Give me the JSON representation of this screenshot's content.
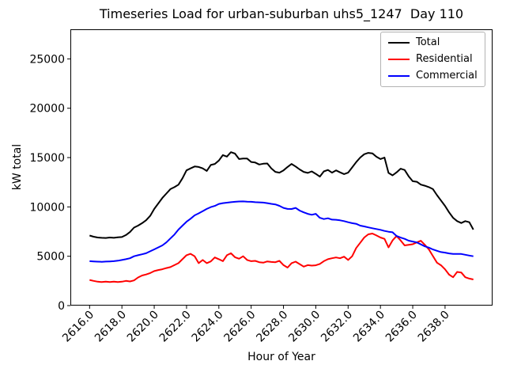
{
  "chart_data": {
    "type": "line",
    "title": "Timeseries Load for urban-suburban uhs5_1247  Day 110",
    "xlabel": "Hour of Year",
    "ylabel": "kW total",
    "grid": false,
    "legend_position": "upper right",
    "xlim": [
      2614.81,
      2640.94
    ],
    "ylim": [
      0,
      28000
    ],
    "x_start": 2616.0,
    "x_step": 0.25,
    "x_ticks": [
      {
        "value": 2616,
        "label": "2616.0"
      },
      {
        "value": 2618,
        "label": "2618.0"
      },
      {
        "value": 2620,
        "label": "2620.0"
      },
      {
        "value": 2622,
        "label": "2622.0"
      },
      {
        "value": 2624,
        "label": "2624.0"
      },
      {
        "value": 2626,
        "label": "2626.0"
      },
      {
        "value": 2628,
        "label": "2628.0"
      },
      {
        "value": 2630,
        "label": "2630.0"
      },
      {
        "value": 2632,
        "label": "2632.0"
      },
      {
        "value": 2634,
        "label": "2634.0"
      },
      {
        "value": 2636,
        "label": "2636.0"
      },
      {
        "value": 2638,
        "label": "2638.0"
      }
    ],
    "y_ticks": [
      {
        "value": 0,
        "label": "0"
      },
      {
        "value": 5000,
        "label": "5000"
      },
      {
        "value": 10000,
        "label": "10000"
      },
      {
        "value": 15000,
        "label": "15000"
      },
      {
        "value": 20000,
        "label": "20000"
      },
      {
        "value": 25000,
        "label": "25000"
      }
    ],
    "series": [
      {
        "name": "Total",
        "color": "#000000",
        "values": [
          7100,
          6980,
          6900,
          6870,
          6850,
          6900,
          6870,
          6920,
          6950,
          7150,
          7450,
          7900,
          8100,
          8350,
          8650,
          9100,
          9800,
          10350,
          10900,
          11350,
          11800,
          12000,
          12250,
          12900,
          13700,
          13900,
          14100,
          14050,
          13900,
          13650,
          14250,
          14350,
          14700,
          15250,
          15100,
          15550,
          15400,
          14850,
          14900,
          14900,
          14550,
          14500,
          14300,
          14380,
          14400,
          13900,
          13550,
          13470,
          13700,
          14050,
          14350,
          14100,
          13800,
          13550,
          13450,
          13600,
          13350,
          13070,
          13600,
          13740,
          13470,
          13700,
          13500,
          13330,
          13470,
          14000,
          14540,
          15000,
          15340,
          15480,
          15430,
          15080,
          14850,
          15000,
          13450,
          13200,
          13500,
          13870,
          13740,
          13100,
          12600,
          12550,
          12260,
          12150,
          12000,
          11800,
          11190,
          10650,
          10100,
          9450,
          8900,
          8560,
          8370,
          8560,
          8450,
          7700
        ]
      },
      {
        "name": "Residential",
        "color": "#ff0000",
        "values": [
          2600,
          2500,
          2420,
          2380,
          2420,
          2380,
          2420,
          2380,
          2420,
          2500,
          2450,
          2550,
          2850,
          3050,
          3150,
          3300,
          3500,
          3600,
          3680,
          3800,
          3900,
          4100,
          4300,
          4700,
          5100,
          5250,
          5000,
          4300,
          4620,
          4300,
          4480,
          4880,
          4700,
          4500,
          5100,
          5300,
          4900,
          4750,
          5000,
          4620,
          4500,
          4530,
          4400,
          4350,
          4480,
          4420,
          4400,
          4530,
          4100,
          3850,
          4300,
          4450,
          4200,
          3950,
          4100,
          4050,
          4080,
          4220,
          4500,
          4700,
          4800,
          4880,
          4800,
          4960,
          4620,
          5000,
          5830,
          6360,
          6900,
          7220,
          7300,
          7110,
          6900,
          6760,
          5900,
          6600,
          7050,
          6600,
          6100,
          6150,
          6220,
          6400,
          6570,
          6150,
          5690,
          5015,
          4345,
          4080,
          3675,
          3140,
          2870,
          3410,
          3355,
          2870,
          2735,
          2650
        ]
      },
      {
        "name": "Commercial",
        "color": "#0000ff",
        "values": [
          4500,
          4480,
          4450,
          4440,
          4460,
          4480,
          4500,
          4550,
          4620,
          4700,
          4800,
          5000,
          5100,
          5200,
          5300,
          5500,
          5700,
          5900,
          6100,
          6400,
          6800,
          7200,
          7700,
          8100,
          8500,
          8800,
          9150,
          9350,
          9570,
          9800,
          9980,
          10100,
          10300,
          10380,
          10430,
          10480,
          10520,
          10550,
          10560,
          10530,
          10515,
          10480,
          10460,
          10440,
          10380,
          10310,
          10250,
          10110,
          9900,
          9800,
          9790,
          9900,
          9630,
          9450,
          9300,
          9200,
          9300,
          8900,
          8770,
          8850,
          8715,
          8700,
          8640,
          8560,
          8450,
          8350,
          8290,
          8100,
          8020,
          7930,
          7840,
          7760,
          7680,
          7565,
          7485,
          7430,
          7050,
          6895,
          6760,
          6575,
          6490,
          6400,
          6200,
          6000,
          5875,
          5690,
          5555,
          5420,
          5365,
          5285,
          5230,
          5230,
          5230,
          5150,
          5070,
          5000
        ]
      }
    ]
  }
}
